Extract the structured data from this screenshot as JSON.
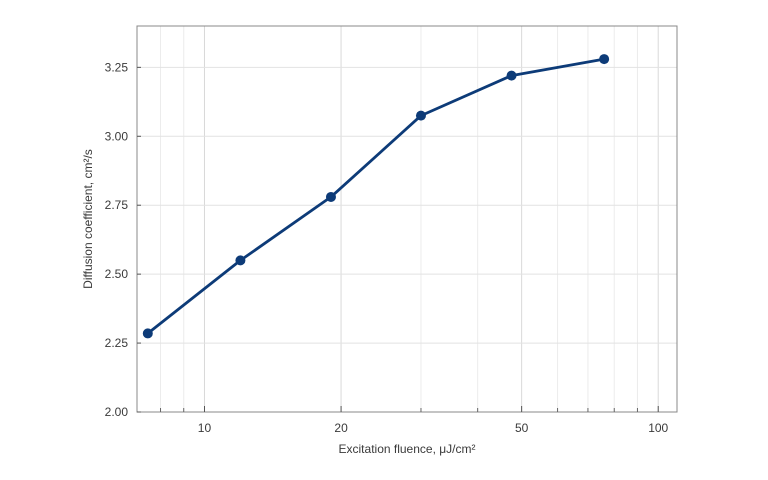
{
  "chart_data": {
    "type": "line",
    "title": "",
    "xlabel": "Excitation fluence, μJ/cm²",
    "ylabel": "Diffusion coefficient, cm²/s",
    "x_scale": "log",
    "xlim": [
      7.1,
      110
    ],
    "ylim": [
      2.0,
      3.4
    ],
    "x_ticks": [
      {
        "value": 10,
        "label": "10"
      },
      {
        "value": 20,
        "label": "20"
      },
      {
        "value": 50,
        "label": "50"
      },
      {
        "value": 100,
        "label": "100"
      }
    ],
    "y_ticks": [
      {
        "value": 2.0,
        "label": "2.00"
      },
      {
        "value": 2.25,
        "label": "2.25"
      },
      {
        "value": 2.5,
        "label": "2.50"
      },
      {
        "value": 2.75,
        "label": "2.75"
      },
      {
        "value": 3.0,
        "label": "3.00"
      },
      {
        "value": 3.25,
        "label": "3.25"
      }
    ],
    "grid": true,
    "legend": "none",
    "series": [
      {
        "color": "#0d3b78",
        "points": [
          {
            "x": 7.5,
            "y": 2.285
          },
          {
            "x": 12,
            "y": 2.55
          },
          {
            "x": 19,
            "y": 2.78
          },
          {
            "x": 30,
            "y": 3.075
          },
          {
            "x": 47.5,
            "y": 3.22
          },
          {
            "x": 76,
            "y": 3.28
          }
        ]
      }
    ]
  }
}
